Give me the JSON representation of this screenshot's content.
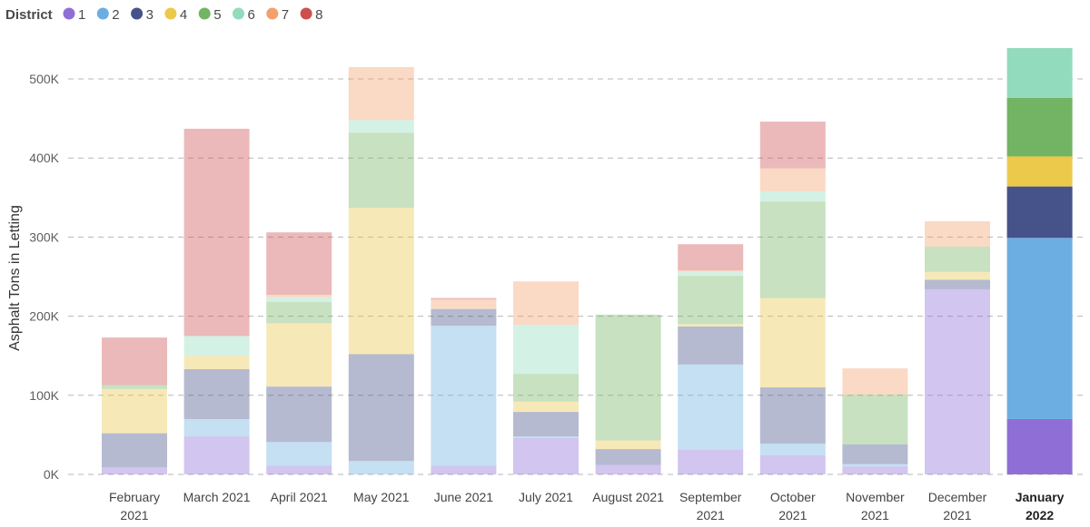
{
  "chart_data": {
    "type": "bar",
    "stacked": true,
    "legend": {
      "title": "District",
      "placement": "top-left",
      "entries": [
        "1",
        "2",
        "3",
        "4",
        "5",
        "6",
        "7",
        "8"
      ]
    },
    "colors": [
      "#8f6fd6",
      "#6daee2",
      "#46528a",
      "#ecc94b",
      "#72b463",
      "#93dbbd",
      "#f2a06e",
      "#cc4f4f"
    ],
    "dimmed_opacity": 0.4,
    "highlighted_category_index": 11,
    "categories": [
      [
        "February",
        "2021"
      ],
      [
        "March 2021"
      ],
      [
        "April 2021"
      ],
      [
        "May 2021"
      ],
      [
        "June 2021"
      ],
      [
        "July 2021"
      ],
      [
        "August 2021"
      ],
      [
        "September",
        "2021"
      ],
      [
        "October",
        "2021"
      ],
      [
        "November",
        "2021"
      ],
      [
        "December",
        "2021"
      ],
      [
        "January",
        "2022"
      ]
    ],
    "series": [
      {
        "name": "1",
        "values": [
          9000,
          48000,
          11000,
          0,
          11000,
          46000,
          12000,
          31000,
          24000,
          10000,
          234000,
          70000
        ]
      },
      {
        "name": "2",
        "values": [
          0,
          22000,
          30000,
          17000,
          177000,
          2000,
          0,
          108000,
          15000,
          3000,
          0,
          229000
        ]
      },
      {
        "name": "3",
        "values": [
          43000,
          63000,
          70000,
          135000,
          21000,
          31000,
          20000,
          48000,
          71000,
          25000,
          12000,
          65000
        ]
      },
      {
        "name": "4",
        "values": [
          56000,
          17000,
          80000,
          185000,
          0,
          13000,
          11000,
          3000,
          113000,
          0,
          10000,
          38000
        ]
      },
      {
        "name": "5",
        "values": [
          5000,
          0,
          27000,
          95000,
          0,
          35000,
          159000,
          61000,
          122000,
          63000,
          32000,
          74000
        ]
      },
      {
        "name": "6",
        "values": [
          0,
          25000,
          6000,
          16000,
          0,
          62000,
          0,
          5000,
          13000,
          0,
          0,
          63000
        ]
      },
      {
        "name": "7",
        "values": [
          0,
          0,
          3000,
          67000,
          12000,
          55000,
          0,
          2000,
          29000,
          33000,
          32000,
          0
        ]
      },
      {
        "name": "8",
        "values": [
          60000,
          262000,
          79000,
          0,
          2000,
          0,
          0,
          33000,
          59000,
          0,
          0,
          0
        ]
      }
    ],
    "ylabel": "Asphalt Tons in Letting",
    "xlabel": "",
    "ylim": [
      0,
      550000
    ],
    "yticks": [
      0,
      100000,
      200000,
      300000,
      400000,
      500000
    ],
    "ytick_labels": [
      "0K",
      "100K",
      "200K",
      "300K",
      "400K",
      "500K"
    ],
    "grid": true
  }
}
